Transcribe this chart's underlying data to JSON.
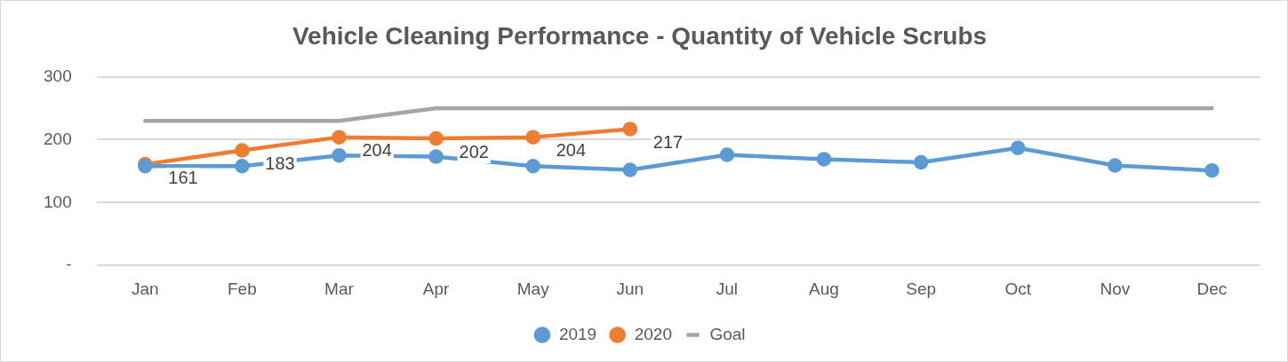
{
  "chart_data": {
    "type": "line",
    "title": "Vehicle Cleaning Performance - Quantity of Vehicle Scrubs",
    "categories": [
      "Jan",
      "Feb",
      "Mar",
      "Apr",
      "May",
      "Jun",
      "Jul",
      "Aug",
      "Sep",
      "Oct",
      "Nov",
      "Dec"
    ],
    "series": [
      {
        "name": "2019",
        "color": "#5b9bd5",
        "marker": "circle",
        "values": [
          158,
          158,
          175,
          173,
          158,
          152,
          176,
          169,
          164,
          187,
          159,
          151
        ]
      },
      {
        "name": "2020",
        "color": "#ed7d31",
        "marker": "circle",
        "values": [
          161,
          183,
          204,
          202,
          204,
          217,
          null,
          null,
          null,
          null,
          null,
          null
        ],
        "value_labels": [
          "161",
          "183",
          "204",
          "202",
          "204",
          "217",
          null,
          null,
          null,
          null,
          null,
          null
        ]
      },
      {
        "name": "Goal",
        "color": "#a5a5a5",
        "marker": "none",
        "values": [
          230,
          230,
          230,
          250,
          250,
          250,
          250,
          250,
          250,
          250,
          250,
          250
        ]
      }
    ],
    "ylim": [
      0,
      300
    ],
    "yticks": [
      {
        "value": 0,
        "label": "-"
      },
      100,
      200,
      300
    ],
    "grid": "y",
    "legend": "bottom"
  }
}
